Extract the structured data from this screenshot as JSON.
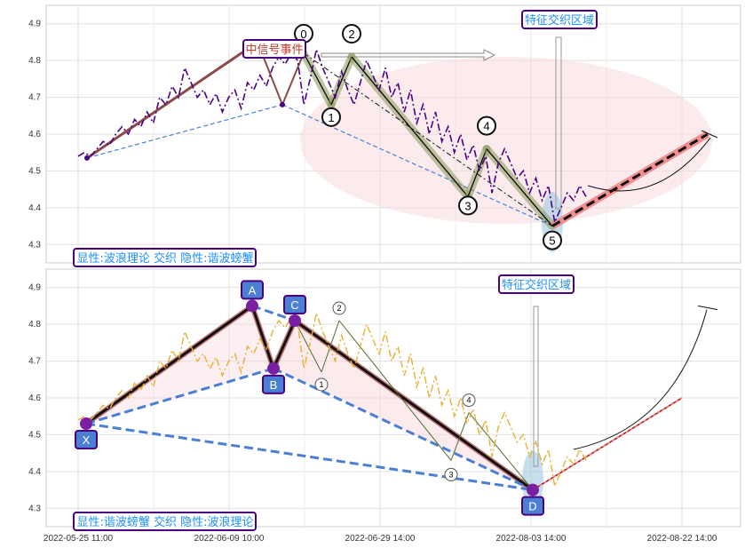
{
  "panels": [
    {
      "id": "top",
      "y_ticks": [
        "4.3",
        "4.4",
        "4.5",
        "4.6",
        "4.7",
        "4.8",
        "4.9"
      ],
      "bottom_label": "显性:波浪理论 交织 隐性:谐波螃蟹",
      "region_label": "特征交织区域",
      "signal_label": "中信号事件",
      "wave_points": [
        "0",
        "1",
        "2",
        "3",
        "4",
        "5"
      ]
    },
    {
      "id": "bottom",
      "y_ticks": [
        "4.3",
        "4.4",
        "4.5",
        "4.6",
        "4.7",
        "4.8",
        "4.9"
      ],
      "bottom_label": "显性:谐波螃蟹 交织 隐性:波浪理论",
      "region_label": "特征交织区域",
      "harmonic_points": [
        "X",
        "A",
        "B",
        "C",
        "D"
      ],
      "wave_points": [
        "1",
        "2",
        "3",
        "4"
      ]
    }
  ],
  "x_ticks": [
    "2022-05-25 11:00",
    "2022-06-09 10:00",
    "2022-06-29 14:00",
    "2022-08-03 14:00",
    "2022-08-22 14:00"
  ],
  "colors": {
    "price_top": "#4b0082",
    "price_bottom": "#e8b030",
    "accent_label": "#1e90ff",
    "box_border": "#4b0082",
    "wave_fill": "#8a9a5b",
    "ellipse": "#f8d7dc",
    "harmonic_box": "#4a7fd4"
  },
  "chart_data": [
    {
      "type": "line",
      "panel": "top",
      "ylim": [
        4.25,
        4.95
      ],
      "series": [
        {
          "values": [
            4.54,
            4.55,
            4.54,
            4.56,
            4.58,
            4.57,
            4.6,
            4.62,
            4.6,
            4.64,
            4.62,
            4.66,
            4.63,
            4.7,
            4.68,
            4.73,
            4.7,
            4.78,
            4.74,
            4.7,
            4.72,
            4.68,
            4.71,
            4.66,
            4.7,
            4.72,
            4.67,
            4.74,
            4.72,
            4.76,
            4.73,
            4.78,
            4.81,
            4.79,
            4.82,
            4.8,
            4.68,
            4.75,
            4.83,
            4.78,
            4.74,
            4.7,
            4.77,
            4.72,
            4.68,
            4.74,
            4.8,
            4.76,
            4.72,
            4.78,
            4.7,
            4.74,
            4.66,
            4.72,
            4.63,
            4.68,
            4.6,
            4.66,
            4.58,
            4.62,
            4.55,
            4.6,
            4.53,
            4.57,
            4.5,
            4.54,
            4.44,
            4.52,
            4.56,
            4.52,
            4.48,
            4.5,
            4.44,
            4.48,
            4.42,
            4.46,
            4.36,
            4.4,
            4.44,
            4.42,
            4.46,
            4.43
          ]
        }
      ],
      "wave_values": {
        "0": 4.82,
        "1": 4.68,
        "2": 4.81,
        "3": 4.43,
        "4": 4.56,
        "5": 4.35
      }
    },
    {
      "type": "line",
      "panel": "bottom",
      "ylim": [
        4.25,
        4.95
      ],
      "series": [
        {
          "values": [
            4.54,
            4.55,
            4.54,
            4.56,
            4.58,
            4.57,
            4.6,
            4.62,
            4.6,
            4.64,
            4.62,
            4.66,
            4.63,
            4.7,
            4.68,
            4.73,
            4.7,
            4.78,
            4.74,
            4.7,
            4.72,
            4.68,
            4.71,
            4.66,
            4.7,
            4.72,
            4.67,
            4.74,
            4.72,
            4.76,
            4.73,
            4.78,
            4.81,
            4.79,
            4.82,
            4.8,
            4.68,
            4.75,
            4.83,
            4.78,
            4.74,
            4.7,
            4.77,
            4.72,
            4.68,
            4.74,
            4.8,
            4.76,
            4.72,
            4.78,
            4.7,
            4.74,
            4.66,
            4.72,
            4.63,
            4.68,
            4.6,
            4.66,
            4.58,
            4.62,
            4.55,
            4.6,
            4.53,
            4.57,
            4.5,
            4.54,
            4.44,
            4.52,
            4.56,
            4.52,
            4.48,
            4.5,
            4.44,
            4.48,
            4.42,
            4.46,
            4.36,
            4.4,
            4.44,
            4.42,
            4.46,
            4.43
          ]
        }
      ],
      "harmonic_values": {
        "X": 4.53,
        "A": 4.85,
        "B": 4.68,
        "C": 4.81,
        "D": 4.35
      }
    }
  ]
}
